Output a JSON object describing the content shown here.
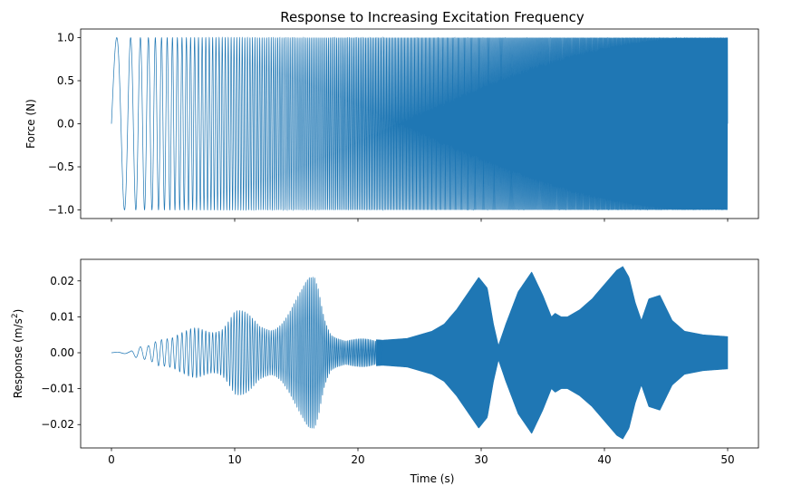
{
  "chart_data": [
    {
      "type": "line",
      "title": "Response to Increasing Excitation Frequency",
      "xlabel": "",
      "ylabel": "Force (N)",
      "xlim": [
        -2.5,
        52.5
      ],
      "ylim": [
        -1.1,
        1.1
      ],
      "xticks": [
        0,
        10,
        20,
        30,
        40,
        50
      ],
      "xtick_labels_shown": false,
      "yticks": [
        1.0,
        0.5,
        0.0,
        -0.5,
        -1.0
      ],
      "ytick_labels": [
        "1.0",
        "0.5",
        "0.0",
        "−0.5",
        "−1.0"
      ],
      "series": [
        {
          "name": "force",
          "color": "#1f77b4",
          "description": "chirp sine, amplitude 1, frequency increasing linearly from ~0.5 Hz to ~20 Hz over 0–50 s",
          "t_start": 0,
          "t_end": 50,
          "amplitude": 1.0
        }
      ]
    },
    {
      "type": "line",
      "title": "",
      "xlabel": "Time (s)",
      "ylabel": "Response (m/s²)",
      "ylabel_main": "Response (m/s",
      "ylabel_sup": "2",
      "ylabel_close": ")",
      "xlim": [
        -2.5,
        52.5
      ],
      "ylim": [
        -0.0265,
        0.026
      ],
      "xticks": [
        0,
        10,
        20,
        30,
        40,
        50
      ],
      "xtick_labels": [
        "0",
        "10",
        "20",
        "30",
        "40",
        "50"
      ],
      "yticks": [
        0.02,
        0.01,
        0.0,
        -0.01,
        -0.02
      ],
      "ytick_labels": [
        "0.02",
        "0.01",
        "0.00",
        "−0.01",
        "−0.02"
      ],
      "series": [
        {
          "name": "response",
          "color": "#1f77b4",
          "t_start": 0,
          "t_end": 50,
          "envelope": {
            "t": [
              0,
              1.5,
              2,
              3,
              3.8,
              5,
              6,
              7,
              8,
              9,
              10,
              11,
              12,
              13,
              14,
              15,
              15.5,
              16,
              16.5,
              16.8,
              17.3,
              17.8,
              18.5,
              19,
              20,
              22,
              24,
              26,
              27,
              28,
              29,
              29.8,
              30.5,
              31,
              31.4,
              32,
              33,
              34.1,
              35,
              35.7,
              36,
              36.5,
              37,
              38,
              39,
              40,
              41,
              41.5,
              42,
              42.5,
              43,
              43.6,
              44.5,
              45.5,
              46.5,
              48,
              50
            ],
            "amp": [
              0.0001,
              0.0003,
              0.0015,
              0.003,
              0.006,
              0.005,
              0.006,
              0.008,
              0.009,
              0.01,
              0.013,
              0.011,
              0.009,
              0.01,
              0.013,
              0.016,
              0.018,
              0.021,
              0.023,
              0.021,
              0.013,
              0.008,
              0.006,
              0.0045,
              0.004,
              0.0035,
              0.004,
              0.006,
              0.008,
              0.012,
              0.017,
              0.021,
              0.018,
              0.008,
              0.002,
              0.008,
              0.017,
              0.0225,
              0.016,
              0.01,
              0.011,
              0.01,
              0.01,
              0.012,
              0.015,
              0.019,
              0.023,
              0.024,
              0.021,
              0.014,
              0.009,
              0.015,
              0.016,
              0.009,
              0.006,
              0.005,
              0.0045
            ]
          }
        }
      ]
    }
  ]
}
